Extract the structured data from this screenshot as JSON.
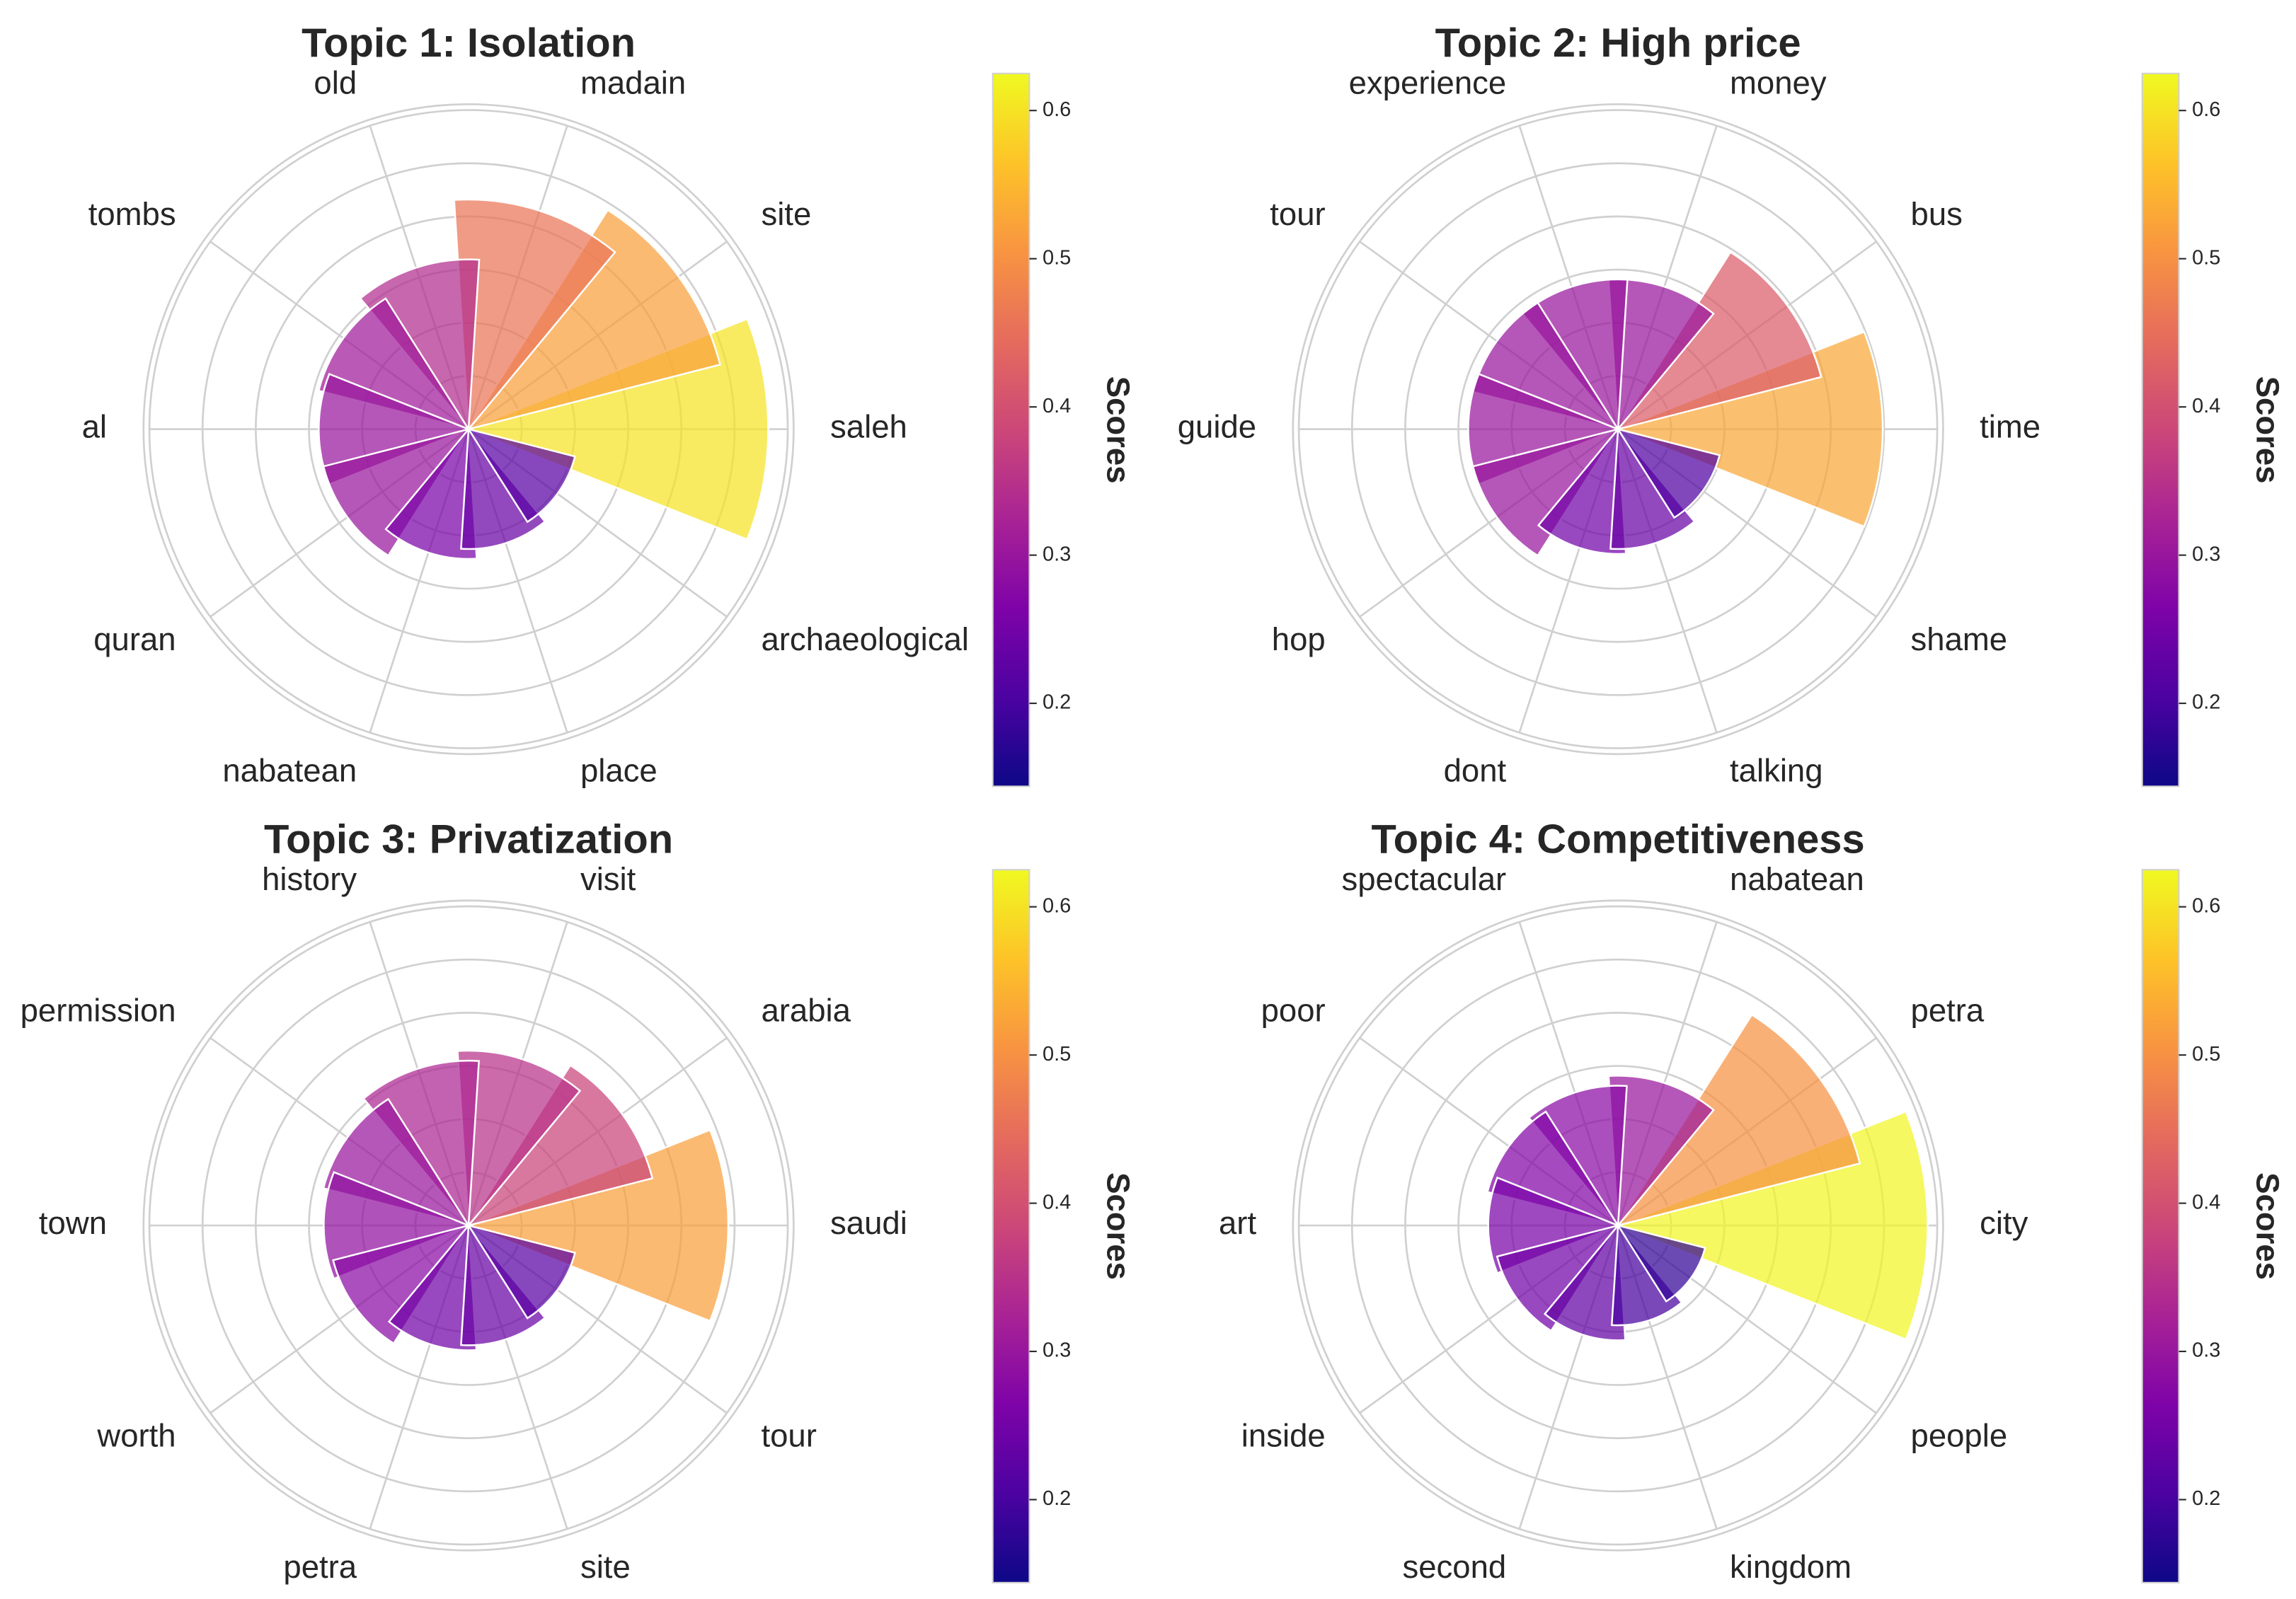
{
  "chart_data": [
    {
      "type": "polar-bar",
      "title": "Topic 1: Isolation",
      "categories": [
        "saleh",
        "site",
        "madain",
        "old",
        "tombs",
        "al",
        "quran",
        "nabatean",
        "place",
        "archaeological"
      ],
      "values": [
        0.6,
        0.52,
        0.46,
        0.34,
        0.31,
        0.3,
        0.3,
        0.26,
        0.24,
        0.22
      ]
    },
    {
      "type": "polar-bar",
      "title": "Topic 2: High price",
      "categories": [
        "time",
        "bus",
        "money",
        "experience",
        "tour",
        "guide",
        "hop",
        "dont",
        "talking",
        "shame"
      ],
      "values": [
        0.53,
        0.42,
        0.3,
        0.3,
        0.3,
        0.3,
        0.3,
        0.25,
        0.24,
        0.21
      ]
    },
    {
      "type": "polar-bar",
      "title": "Topic 3: Privatization",
      "categories": [
        "saudi",
        "arabia",
        "visit",
        "history",
        "permission",
        "town",
        "worth",
        "petra",
        "site",
        "tour"
      ],
      "values": [
        0.52,
        0.38,
        0.35,
        0.33,
        0.3,
        0.29,
        0.28,
        0.25,
        0.24,
        0.22
      ]
    },
    {
      "type": "polar-bar",
      "title": "Topic 4: Competitiveness",
      "categories": [
        "city",
        "petra",
        "nabatean",
        "spectacular",
        "poor",
        "art",
        "inside",
        "second",
        "kingdom",
        "people"
      ],
      "values": [
        0.62,
        0.5,
        0.3,
        0.28,
        0.27,
        0.26,
        0.25,
        0.23,
        0.2,
        0.18
      ]
    }
  ],
  "colorbar": {
    "label": "Scores",
    "range": [
      0.144,
      0.625
    ],
    "ticks": [
      "0.2",
      "0.3",
      "0.4",
      "0.5",
      "0.6"
    ],
    "colormap": "plasma"
  }
}
